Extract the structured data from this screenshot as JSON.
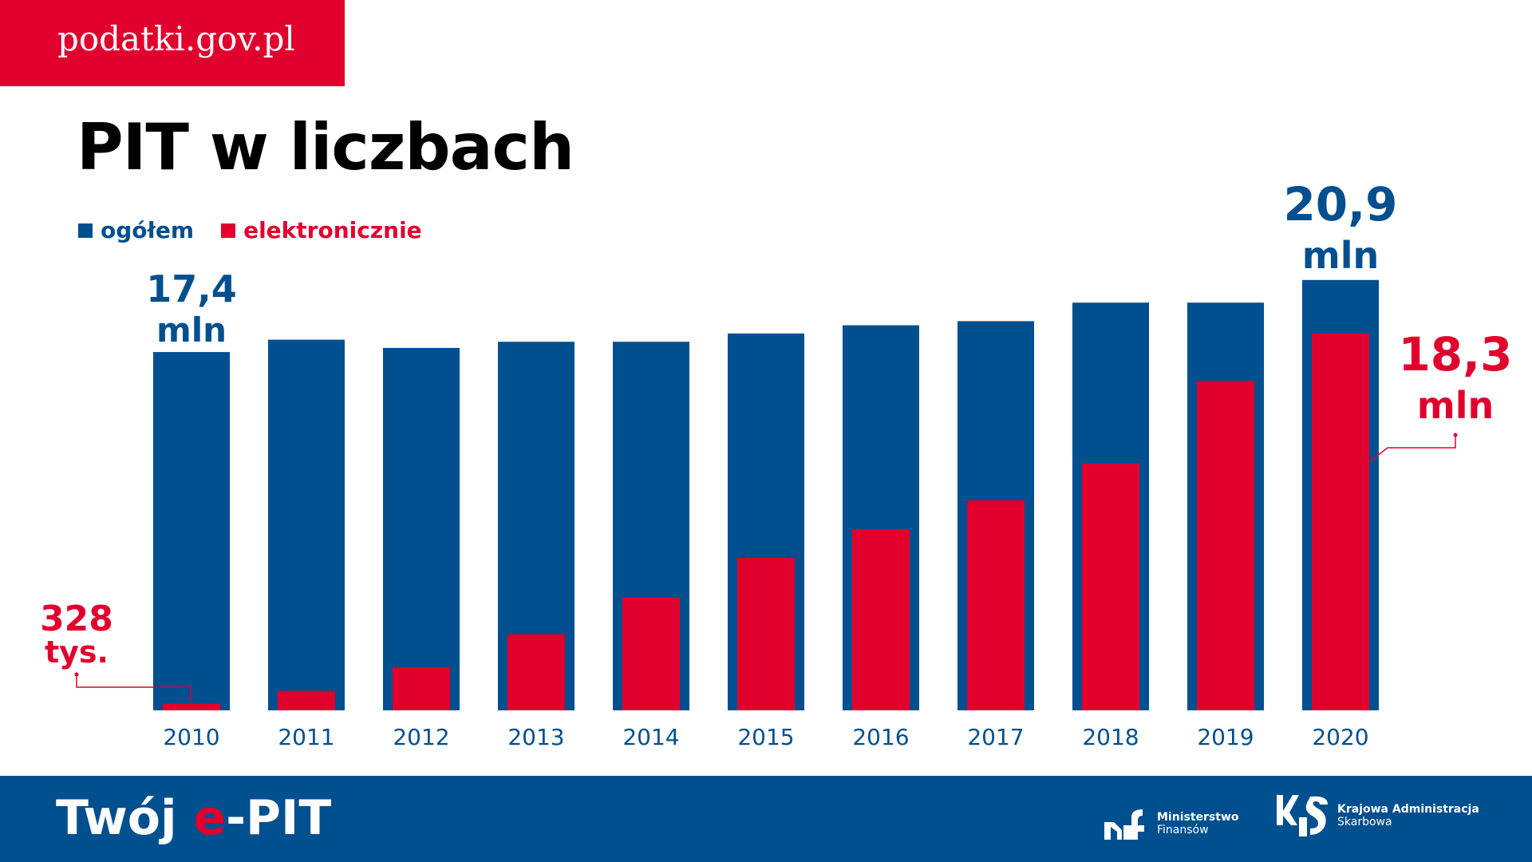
{
  "brand": {
    "site": "podatki.gov.pl"
  },
  "title": "PIT w liczbach",
  "colors": {
    "blue": "#004f8f",
    "red": "#e1002d"
  },
  "chart_data": {
    "type": "bar",
    "categories": [
      "2010",
      "2011",
      "2012",
      "2013",
      "2014",
      "2015",
      "2016",
      "2017",
      "2018",
      "2019",
      "2020"
    ],
    "series": [
      {
        "name": "ogółem",
        "color": "#004f8f",
        "values": [
          17.4,
          18.0,
          17.6,
          17.9,
          17.9,
          18.3,
          18.7,
          18.9,
          19.8,
          19.8,
          20.9
        ]
      },
      {
        "name": "elektronicznie",
        "color": "#e1002d",
        "values": [
          0.328,
          0.95,
          2.1,
          3.7,
          5.5,
          7.4,
          8.8,
          10.2,
          12.0,
          16.0,
          18.3
        ]
      }
    ],
    "unit": "mln",
    "ylim": [
      0,
      21
    ],
    "grid": false,
    "legend": "top-left",
    "annotations": [
      {
        "target": "ogółem 2010",
        "value": "17,4",
        "unit": "mln"
      },
      {
        "target": "ogółem 2020",
        "value": "20,9",
        "unit": "mln"
      },
      {
        "target": "elektronicznie 2020",
        "value": "18,3",
        "unit": "mln"
      },
      {
        "target": "elektronicznie 2010",
        "value": "328",
        "unit": "tys."
      }
    ]
  },
  "footer": {
    "campaign_pre": "Twój ",
    "campaign_e": "e",
    "campaign_post": "-PIT",
    "logo_mf": {
      "line1": "Ministerstwo",
      "line2": "Finansów"
    },
    "logo_kas": {
      "line1": "Krajowa Administracja",
      "line2": "Skarbowa"
    }
  }
}
